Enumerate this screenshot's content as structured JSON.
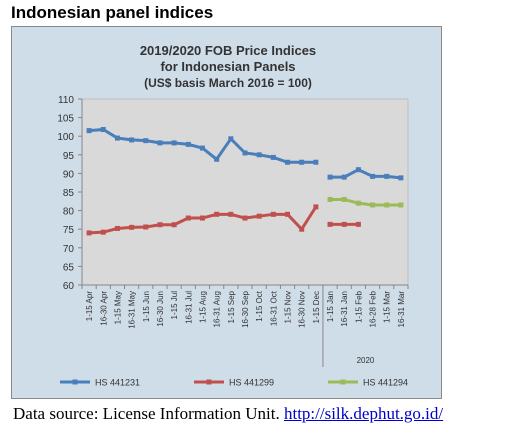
{
  "page": {
    "heading": "Indonesian panel indices",
    "source_prefix": "Data source: License Information Unit.",
    "source_link": "http://silk.dephut.go.id/"
  },
  "chart_data": {
    "type": "line",
    "title_lines": [
      "2019/2020 FOB Price Indices",
      "for Indonesian Panels",
      "(US$ basis March 2016 = 100)"
    ],
    "xlabel": "",
    "ylabel": "",
    "ylim": [
      60,
      110
    ],
    "yticks": [
      60,
      65,
      70,
      75,
      80,
      85,
      90,
      95,
      100,
      105,
      110
    ],
    "grid": false,
    "legend_position": "bottom",
    "categories": [
      "1-15 Apr",
      "16-30 Apr",
      "1-15 May",
      "16-31 May",
      "1-15 Jun",
      "16-30 Jun",
      "1-15 Jul",
      "16-31 Jul",
      "1-15 Aug",
      "16-31 Aug",
      "1-15 Sep",
      "16-30 Sep",
      "1-15 Oct",
      "16-31 Oct",
      "1-15 Nov",
      "16-30 Nov",
      "1-15 Dec",
      "1-15 Jan",
      "16-31 Jan",
      "1-15 Feb",
      "16-28 Feb",
      "1-15 Mar",
      "16-31 Mar"
    ],
    "year_group": {
      "label": "2020",
      "from_index": 17,
      "to_index": 22
    },
    "series": [
      {
        "name": "HS 441231",
        "color": "#4a7ebb",
        "values": [
          101.5,
          101.8,
          99.5,
          99.0,
          98.8,
          98.2,
          98.2,
          97.8,
          96.8,
          93.8,
          99.3,
          95.5,
          95.0,
          94.3,
          93.0,
          93.0,
          93.0,
          89.0,
          89.0,
          91.0,
          89.2,
          89.2,
          88.8
        ]
      },
      {
        "name": "HS 441299",
        "color": "#c0504d",
        "values": [
          74.0,
          74.2,
          75.2,
          75.5,
          75.6,
          76.2,
          76.2,
          78.0,
          78.0,
          79.0,
          79.0,
          78.0,
          78.5,
          79.0,
          79.0,
          75.0,
          81.0,
          76.3,
          76.3,
          76.3,
          null,
          null,
          null
        ]
      },
      {
        "name": "HS 441294",
        "color": "#9bbb59",
        "values": [
          null,
          null,
          null,
          null,
          null,
          null,
          null,
          null,
          null,
          null,
          null,
          null,
          null,
          null,
          null,
          null,
          null,
          83.0,
          83.0,
          82.0,
          81.5,
          81.5,
          81.5
        ]
      }
    ]
  }
}
